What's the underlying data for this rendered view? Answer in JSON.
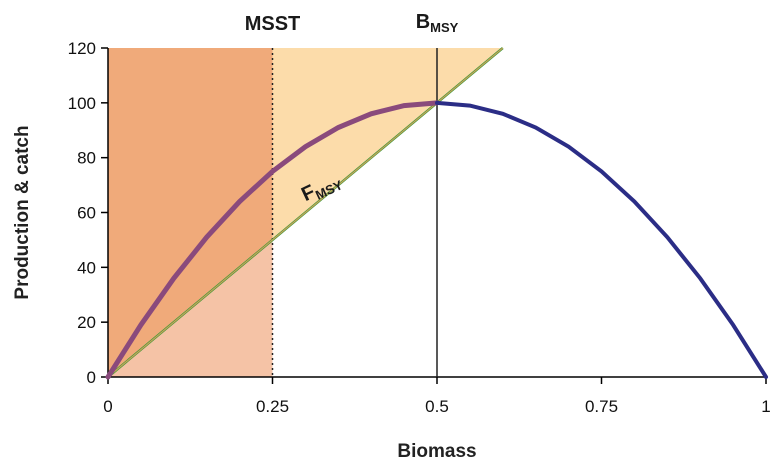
{
  "chart_data": {
    "type": "line",
    "xlabel": "Biomass",
    "ylabel": "Production & catch",
    "xlim": [
      0,
      1
    ],
    "ylim": [
      0,
      120
    ],
    "x_ticks": [
      0,
      0.25,
      0.5,
      0.75,
      1
    ],
    "x_tick_labels": [
      "0",
      "0.25",
      "0.5",
      "0.75",
      "1"
    ],
    "y_ticks": [
      0,
      20,
      40,
      60,
      80,
      100,
      120
    ],
    "y_tick_labels": [
      "0",
      "20",
      "40",
      "60",
      "80",
      "100",
      "120"
    ],
    "grid": false,
    "series": [
      {
        "role": "production-curve",
        "color": "#2b2d86",
        "x": [
          0,
          0.05,
          0.1,
          0.15,
          0.2,
          0.25,
          0.3,
          0.35,
          0.4,
          0.45,
          0.5,
          0.55,
          0.6,
          0.65,
          0.7,
          0.75,
          0.8,
          0.85,
          0.9,
          0.95,
          1
        ],
        "y": [
          0,
          19,
          36,
          51,
          64,
          75,
          84,
          91,
          96,
          99,
          100,
          99,
          96,
          91,
          84,
          75,
          64,
          51,
          36,
          19,
          0
        ]
      },
      {
        "role": "catch-line",
        "color": "#3f9a3a",
        "x": [
          0,
          0.6
        ],
        "y": [
          0,
          120
        ]
      }
    ],
    "reference_lines": [
      {
        "x": 0.25,
        "label": "MSST",
        "style": "dotted"
      },
      {
        "x": 0.5,
        "label_main": "B",
        "label_sub": "MSY",
        "style": "solid"
      }
    ],
    "annotations": [
      {
        "label_main": "F",
        "label_sub": "MSY"
      }
    ],
    "regions": {
      "overfished_color": "#f0aa7a",
      "below_catch_color": "#f5c3a6",
      "surplus_color": "#fcdcaa"
    }
  }
}
